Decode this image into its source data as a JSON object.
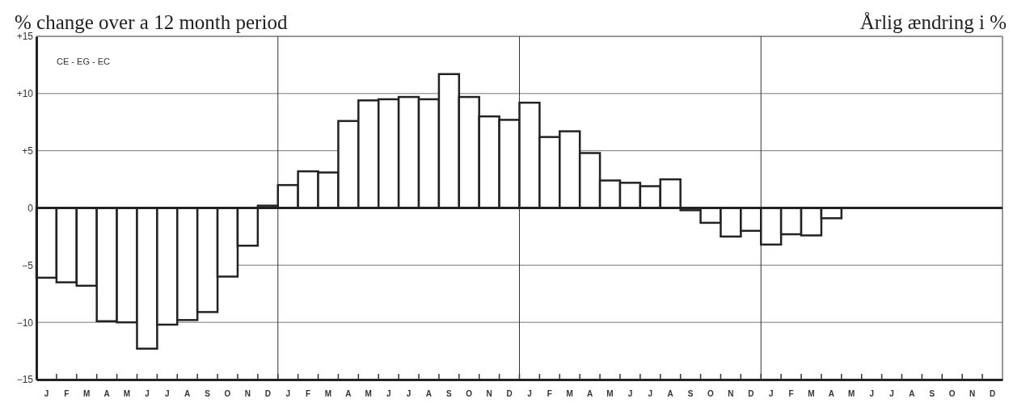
{
  "chart_data": {
    "type": "bar",
    "title": "% change over a 12 month period",
    "subtitle": "Årlig ændring i %",
    "annotations": [
      "CE - EG - EC"
    ],
    "categories": [
      "J",
      "F",
      "M",
      "A",
      "M",
      "J",
      "J",
      "A",
      "S",
      "O",
      "N",
      "D",
      "J",
      "F",
      "M",
      "A",
      "M",
      "J",
      "J",
      "A",
      "S",
      "O",
      "N",
      "D",
      "J",
      "F",
      "M",
      "A",
      "M",
      "J",
      "J",
      "A",
      "S",
      "O",
      "N",
      "D",
      "J",
      "F",
      "M",
      "A",
      "M",
      "J",
      "J",
      "A",
      "S",
      "O",
      "N",
      "D"
    ],
    "values": [
      -6.1,
      -6.5,
      -6.8,
      -9.9,
      -10.0,
      -12.3,
      -10.2,
      -9.8,
      -9.1,
      -6.0,
      -3.3,
      0.2,
      2.0,
      3.2,
      3.1,
      7.6,
      9.4,
      9.5,
      9.7,
      9.5,
      11.7,
      9.7,
      8.0,
      7.7,
      9.2,
      6.2,
      6.7,
      4.8,
      2.4,
      2.2,
      1.9,
      2.5,
      -0.2,
      -1.3,
      -2.5,
      -2.0,
      -3.2,
      -2.3,
      -2.4,
      -0.9,
      null,
      null,
      null,
      null,
      null,
      null,
      null,
      null
    ],
    "color": "#ffffff",
    "ylim": [
      -15,
      15
    ],
    "yticks": [
      {
        "value": 15,
        "label": "+15"
      },
      {
        "value": 10,
        "label": "+10"
      },
      {
        "value": 5,
        "label": "+5"
      },
      0,
      {
        "value": -5,
        "label": "−5"
      },
      {
        "value": -10,
        "label": "−10"
      },
      {
        "value": -15,
        "label": "−15"
      }
    ],
    "grid": true
  }
}
